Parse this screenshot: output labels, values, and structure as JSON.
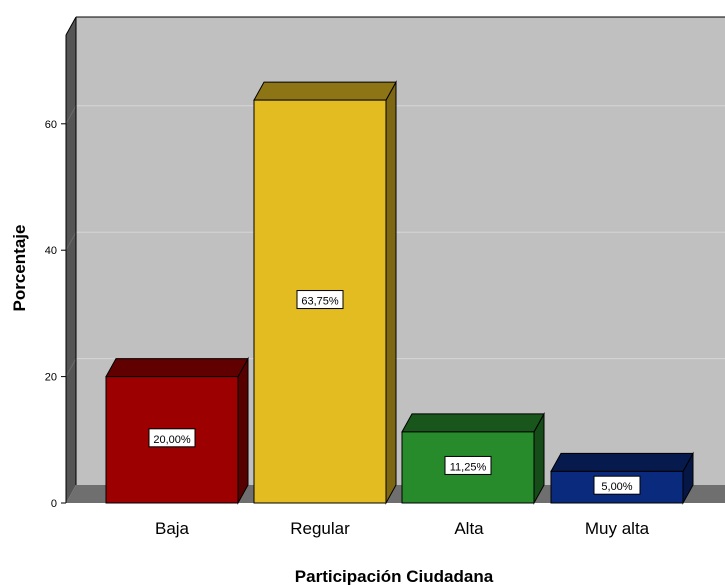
{
  "chart_data": {
    "type": "bar",
    "categories": [
      "Baja",
      "Regular",
      "Alta",
      "Muy alta"
    ],
    "values": [
      20.0,
      63.75,
      11.25,
      5.0
    ],
    "data_labels": [
      "20,00%",
      "63,75%",
      "11,25%",
      "5,00%"
    ],
    "colors": [
      "#9c0000",
      "#e3bc22",
      "#278a2b",
      "#0a2a7e"
    ],
    "title": "",
    "xlabel": "Participación Ciudadana",
    "ylabel": "Porcentaje",
    "yticks": [
      0,
      20,
      40,
      60
    ],
    "ylim": [
      0,
      70
    ],
    "grid": true,
    "style": "3d-bar"
  }
}
